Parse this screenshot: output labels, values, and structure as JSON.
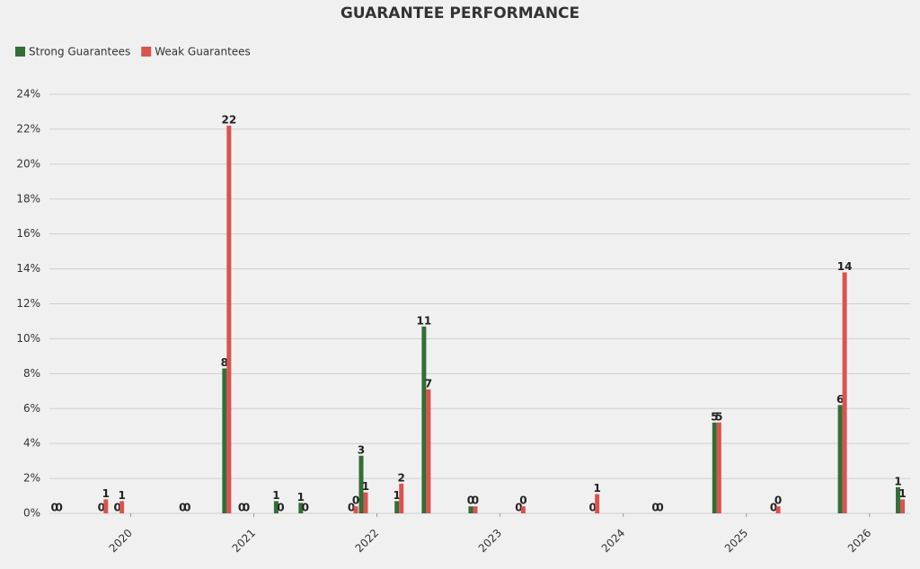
{
  "chart_data": {
    "type": "bar",
    "title": "GUARANTEE PERFORMANCE",
    "x": [
      2019.4,
      2019.78,
      2019.91,
      2020.44,
      2020.78,
      2020.92,
      2021.2,
      2021.4,
      2021.81,
      2021.89,
      2022.18,
      2022.4,
      2022.78,
      2023.17,
      2023.77,
      2024.28,
      2024.76,
      2025.24,
      2025.78,
      2026.25
    ],
    "series": [
      {
        "name": "Strong Guarantees",
        "color": "#336e36",
        "values": [
          0,
          0,
          0,
          0,
          8.3,
          0,
          0.7,
          0.6,
          0,
          3.3,
          0.7,
          10.7,
          0.4,
          0,
          0,
          0,
          5.2,
          0,
          6.2,
          1.5
        ],
        "value_labels": [
          "0",
          "0",
          "0",
          "0",
          "8",
          "0",
          "1",
          "1",
          "0",
          "3",
          "1",
          "11",
          "0",
          "0",
          "0",
          "0",
          "5",
          "0",
          "6",
          "1"
        ]
      },
      {
        "name": "Weak Guarantees",
        "color": "#d9534f",
        "values": [
          0,
          0.8,
          0.7,
          0,
          22.2,
          0,
          0,
          0,
          0.4,
          1.2,
          1.7,
          7.1,
          0.4,
          0.4,
          1.1,
          0,
          5.2,
          0.4,
          13.8,
          0.8
        ],
        "value_labels": [
          "0",
          "1",
          "1",
          "0",
          "22",
          "0",
          "0",
          "0",
          "0",
          "1",
          "2",
          "7",
          "0",
          "0",
          "1",
          "0",
          "5",
          "0",
          "14",
          "1"
        ]
      }
    ],
    "xlim": [
      2019.34,
      2026.33
    ],
    "xticks": [
      2020,
      2021,
      2022,
      2023,
      2024,
      2025,
      2026
    ],
    "ylim": [
      0,
      24
    ],
    "yticks": [
      {
        "value": 0,
        "label": "0%"
      },
      {
        "value": 2,
        "label": "2%"
      },
      {
        "value": 4,
        "label": "4%"
      },
      {
        "value": 6,
        "label": "6%"
      },
      {
        "value": 8,
        "label": "8%"
      },
      {
        "value": 10,
        "label": "10%"
      },
      {
        "value": 12,
        "label": "12%"
      },
      {
        "value": 14,
        "label": "14%"
      },
      {
        "value": 16,
        "label": "16%"
      },
      {
        "value": 18,
        "label": "18%"
      },
      {
        "value": 20,
        "label": "20%"
      },
      {
        "value": 22,
        "label": "22%"
      },
      {
        "value": 24,
        "label": "24%"
      }
    ],
    "grid": true,
    "legend": "top-left"
  }
}
